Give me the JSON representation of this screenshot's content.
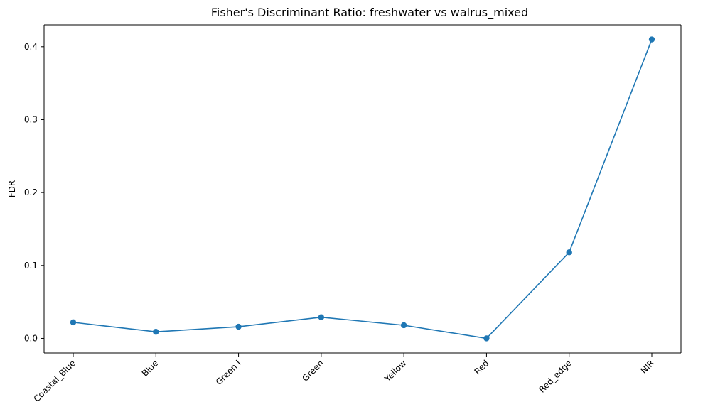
{
  "chart_data": {
    "type": "line",
    "title": "Fisher's Discriminant Ratio: freshwater vs walrus_mixed",
    "xlabel": "",
    "ylabel": "FDR",
    "categories": [
      "Coastal_Blue",
      "Blue",
      "Green I",
      "Green",
      "Yellow",
      "Red",
      "Red_edge",
      "NIR"
    ],
    "series": [
      {
        "values": [
          0.022,
          0.009,
          0.016,
          0.029,
          0.018,
          0.0,
          0.118,
          0.41
        ]
      }
    ],
    "ylim": [
      -0.02,
      0.43
    ],
    "yticks": [
      0.0,
      0.1,
      0.2,
      0.3,
      0.4
    ],
    "ytick_labels": [
      "0.0",
      "0.1",
      "0.2",
      "0.3",
      "0.4"
    ],
    "grid": false,
    "legend": "none",
    "colors": {
      "line": "#1f77b4",
      "marker": "#1f77b4",
      "axis": "#000000"
    },
    "marker": "circle",
    "xtick_rotation_deg": 45
  }
}
